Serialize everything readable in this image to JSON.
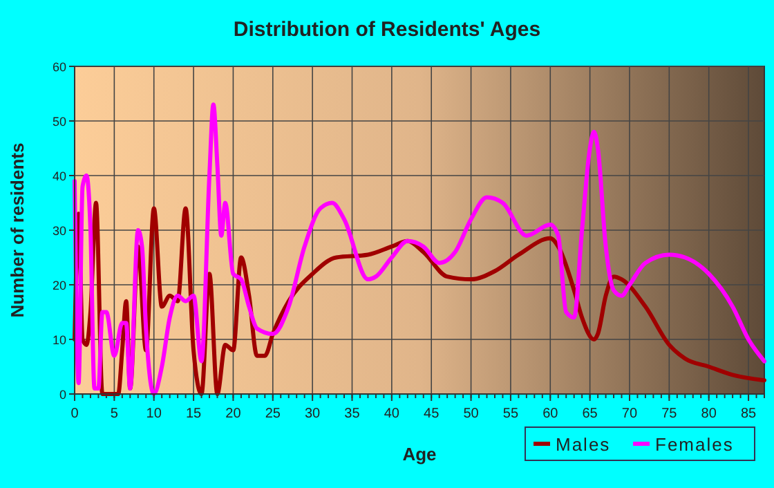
{
  "chart_data": {
    "type": "line",
    "title": "Distribution of Residents' Ages",
    "xlabel": "Age",
    "ylabel": "Number of residents",
    "xlim": [
      0,
      87
    ],
    "xticks": [
      0,
      5,
      10,
      15,
      20,
      25,
      30,
      35,
      40,
      45,
      50,
      55,
      60,
      65,
      70,
      75,
      80,
      85
    ],
    "ylim": [
      0,
      60
    ],
    "yticks": [
      0,
      10,
      20,
      30,
      40,
      50,
      60
    ],
    "grid": true,
    "legend": "bottom right",
    "line_style": "solid",
    "series": [
      {
        "name": "Males",
        "color": "#a00000",
        "x": [
          0,
          0.5,
          1,
          1.5,
          2,
          2.7,
          3.5,
          4,
          5,
          5.5,
          6,
          6.5,
          7,
          8,
          9,
          10,
          11,
          12,
          13,
          14,
          15,
          16,
          17,
          18,
          19,
          20,
          21,
          22,
          23,
          24,
          25,
          27,
          30,
          33,
          37,
          40,
          42,
          44,
          47,
          50,
          53,
          56,
          60,
          61,
          63,
          64,
          65.5,
          66,
          67,
          68,
          69,
          72,
          75,
          77,
          80,
          83,
          87
        ],
        "values": [
          10,
          33,
          10,
          9,
          15,
          35,
          0,
          0,
          0,
          0,
          8,
          17,
          1,
          27,
          8,
          34,
          16,
          18,
          17,
          34,
          8,
          0,
          22,
          0,
          9,
          8,
          25,
          18,
          7,
          7,
          11,
          17,
          22,
          25,
          25.5,
          27,
          28,
          26,
          21.5,
          21,
          22.5,
          25.5,
          28.5,
          27,
          19,
          14,
          10,
          11,
          18,
          21.5,
          21,
          16,
          9,
          6.5,
          5,
          3.5,
          2.5
        ]
      },
      {
        "name": "Females",
        "color": "#ff00ff",
        "x": [
          0,
          0.5,
          1,
          1.5,
          2,
          2.5,
          3,
          3.5,
          4,
          5,
          6,
          6.5,
          7,
          8,
          8.5,
          9,
          10,
          11,
          12,
          13,
          14,
          15,
          16,
          17,
          17.5,
          18,
          18.5,
          19,
          20,
          21,
          22,
          23,
          25,
          27,
          29,
          31,
          32.5,
          34,
          37,
          38,
          40,
          42,
          44,
          46,
          48,
          50,
          52,
          54,
          57,
          60,
          61,
          62,
          63,
          64,
          65,
          65.5,
          66,
          67,
          68,
          69,
          70,
          72,
          75,
          77,
          80,
          83,
          85,
          87
        ],
        "values": [
          39,
          2,
          38,
          40,
          30,
          1,
          1,
          15,
          15,
          7,
          13,
          13,
          1,
          30,
          27,
          12,
          0,
          5,
          14,
          18,
          17,
          18,
          6,
          40,
          53,
          42,
          29,
          35,
          22,
          21,
          16,
          12,
          11,
          16,
          27,
          34,
          35,
          32,
          21,
          21.5,
          25,
          28,
          27,
          24,
          26,
          32,
          36,
          35,
          29,
          31,
          29,
          15,
          14,
          30,
          45,
          48,
          45,
          27,
          19,
          18,
          20,
          24,
          25.5,
          25,
          22,
          16,
          10,
          6
        ]
      }
    ]
  }
}
